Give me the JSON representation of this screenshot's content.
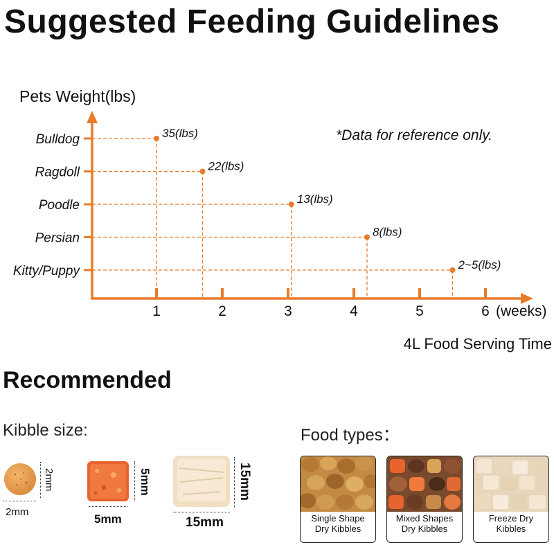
{
  "title": "Suggested Feeding Guidelines",
  "chart_data": {
    "type": "scatter",
    "ylabel": "Pets Weight(lbs)",
    "xlabel": "4L Food Serving Time",
    "x_unit": "(weeks)",
    "x_ticks": [
      "1",
      "2",
      "3",
      "4",
      "5",
      "6"
    ],
    "xlim": [
      0,
      6.3
    ],
    "note": "*Data for reference only.",
    "points": [
      {
        "pet": "Bulldog",
        "weeks": 1,
        "label": "35(lbs)"
      },
      {
        "pet": "Ragdoll",
        "weeks": 1.7,
        "label": "22(lbs)"
      },
      {
        "pet": "Poodle",
        "weeks": 3.05,
        "label": "13(lbs)"
      },
      {
        "pet": "Persian",
        "weeks": 4.2,
        "label": "8(lbs)"
      },
      {
        "pet": "Kitty/Puppy",
        "weeks": 5.5,
        "label": "2~5(lbs)"
      }
    ],
    "color": "#E87C2C"
  },
  "recommended": {
    "title": "Recommended",
    "kibble_label": "Kibble size:",
    "food_label": "Food types：",
    "kibbles": [
      {
        "name": "round",
        "width": "2mm",
        "height": "2mm"
      },
      {
        "name": "square-orange",
        "width": "5mm",
        "height": "5mm"
      },
      {
        "name": "cube-freeze",
        "width": "15mm",
        "height": "15mm"
      }
    ],
    "food_types": [
      {
        "line1": "Single Shape",
        "line2": "Dry Kibbles"
      },
      {
        "line1": "Mixed Shapes",
        "line2": "Dry Kibbles"
      },
      {
        "line1": "Freeze Dry",
        "line2": "Kibbles"
      }
    ]
  }
}
